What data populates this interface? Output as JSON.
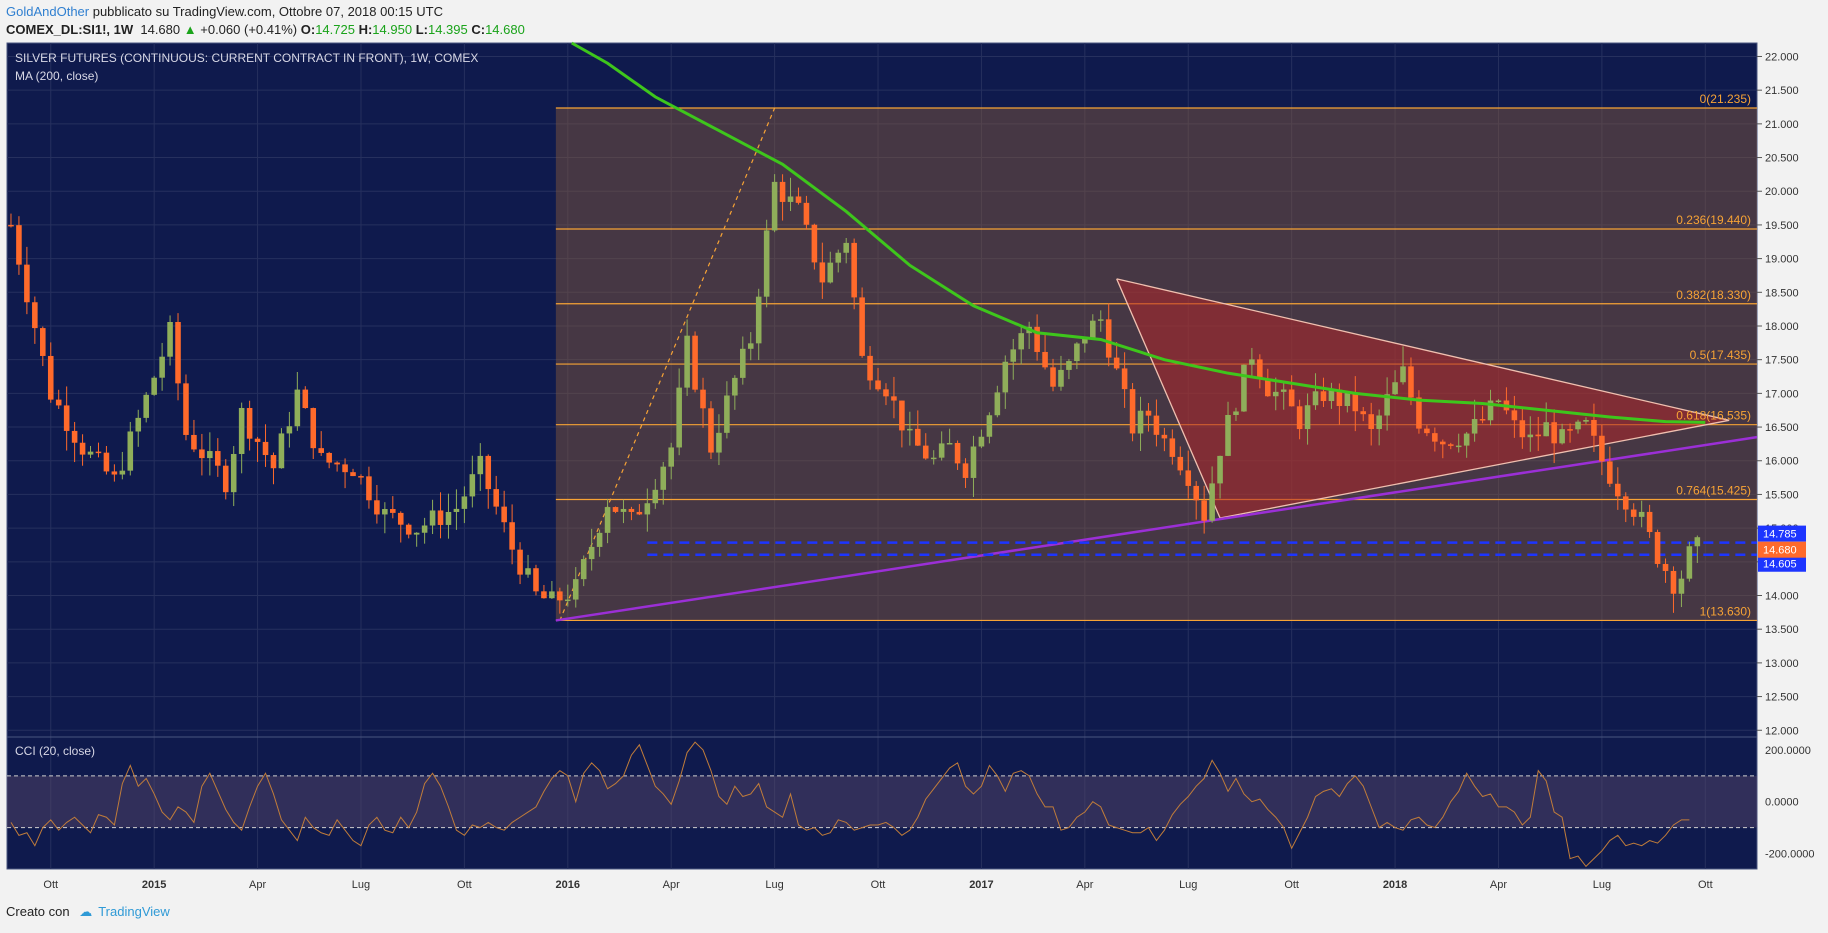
{
  "header": {
    "author": "GoldAndOther",
    "published": " pubblicato su TradingView.com, Ottobre 07, 2018 00:15 UTC",
    "symbol": "COMEX_DL:SI1!, 1W",
    "last": "14.680",
    "change": "+0.060 (+0.41%)",
    "o_label": "O:",
    "o": "14.725",
    "h_label": "H:",
    "h": "14.950",
    "l_label": "L:",
    "l": "14.395",
    "c_label": "C:",
    "c": "14.680"
  },
  "legend": {
    "title": "SILVER FUTURES (CONTINUOUS: CURRENT CONTRACT IN FRONT), 1W, COMEX",
    "ma": "MA (200, close)",
    "cci": "CCI (20, close)"
  },
  "footer": {
    "made_with": "Creato con",
    "brand": "TradingView"
  },
  "colors": {
    "background": "#0f1a4d",
    "candle_up": "#8fae5a",
    "candle_down": "#ff6a2b",
    "ma": "#3ec61c",
    "trendline": "#9b2fd6",
    "fib": "#f7a335",
    "triangle": "#b0262a",
    "cci": "#c07c3a",
    "hline": "#1d35ff"
  },
  "chart_data": [
    {
      "type": "candlestick",
      "title": "SILVER FUTURES (CONTINUOUS: CURRENT CONTRACT IN FRONT), 1W, COMEX",
      "ylim": [
        11.9,
        22.2
      ],
      "y_ticks": [
        "22.000",
        "21.500",
        "21.000",
        "20.500",
        "20.000",
        "19.500",
        "19.000",
        "18.500",
        "18.000",
        "17.500",
        "17.000",
        "16.500",
        "16.000",
        "15.500",
        "15.000",
        "14.500",
        "14.000",
        "13.500",
        "13.000",
        "12.500",
        "12.000"
      ],
      "x_ticks": [
        {
          "label": "Ott",
          "week": 0
        },
        {
          "label": "2015",
          "week": 13,
          "bold": true
        },
        {
          "label": "Apr",
          "week": 26
        },
        {
          "label": "Lug",
          "week": 39
        },
        {
          "label": "Ott",
          "week": 52
        },
        {
          "label": "2016",
          "week": 65,
          "bold": true
        },
        {
          "label": "Apr",
          "week": 78
        },
        {
          "label": "Lug",
          "week": 91
        },
        {
          "label": "Ott",
          "week": 104
        },
        {
          "label": "2017",
          "week": 117,
          "bold": true
        },
        {
          "label": "Apr",
          "week": 130
        },
        {
          "label": "Lug",
          "week": 143
        },
        {
          "label": "Ott",
          "week": 156
        },
        {
          "label": "2018",
          "week": 169,
          "bold": true
        },
        {
          "label": "Apr",
          "week": 182
        },
        {
          "label": "Lug",
          "week": 195
        },
        {
          "label": "Ott",
          "week": 208
        }
      ],
      "x_range": [
        -5.5,
        214.5
      ],
      "keypoints": [
        [
          -5,
          19.5
        ],
        [
          0,
          17.0
        ],
        [
          4,
          16.2
        ],
        [
          8,
          15.7
        ],
        [
          11,
          16.6
        ],
        [
          15,
          17.9
        ],
        [
          17,
          16.4
        ],
        [
          22,
          15.7
        ],
        [
          24,
          16.7
        ],
        [
          28,
          15.9
        ],
        [
          31,
          17.0
        ],
        [
          34,
          16.0
        ],
        [
          38,
          15.9
        ],
        [
          42,
          15.2
        ],
        [
          46,
          15.0
        ],
        [
          51,
          15.3
        ],
        [
          54,
          15.9
        ],
        [
          58,
          14.7
        ],
        [
          61,
          14.0
        ],
        [
          63,
          13.9
        ],
        [
          66,
          14.1
        ],
        [
          70,
          15.4
        ],
        [
          73,
          15.1
        ],
        [
          75,
          15.5
        ],
        [
          78,
          16.2
        ],
        [
          80,
          17.7
        ],
        [
          83,
          16.2
        ],
        [
          86,
          17.2
        ],
        [
          88,
          17.8
        ],
        [
          91,
          20.1
        ],
        [
          94,
          19.7
        ],
        [
          97,
          18.7
        ],
        [
          100,
          19.3
        ],
        [
          102,
          17.5
        ],
        [
          105,
          17.1
        ],
        [
          108,
          16.3
        ],
        [
          111,
          16.0
        ],
        [
          113,
          16.2
        ],
        [
          115,
          15.9
        ],
        [
          118,
          16.8
        ],
        [
          120,
          17.5
        ],
        [
          123,
          18.0
        ],
        [
          126,
          17.1
        ],
        [
          128,
          17.4
        ],
        [
          130,
          17.9
        ],
        [
          132,
          18.1
        ],
        [
          134,
          17.3
        ],
        [
          136,
          16.5
        ],
        [
          138,
          16.7
        ],
        [
          140,
          16.3
        ],
        [
          141,
          16.2
        ],
        [
          143,
          15.8
        ],
        [
          145,
          15.2
        ],
        [
          147,
          16.2
        ],
        [
          149,
          16.9
        ],
        [
          151,
          17.6
        ],
        [
          153,
          17.1
        ],
        [
          155,
          16.9
        ],
        [
          157,
          16.6
        ],
        [
          160,
          17.0
        ],
        [
          162,
          16.9
        ],
        [
          164,
          16.8
        ],
        [
          166,
          16.4
        ],
        [
          168,
          16.9
        ],
        [
          170,
          17.3
        ],
        [
          172,
          16.6
        ],
        [
          175,
          16.3
        ],
        [
          178,
          16.4
        ],
        [
          180,
          16.6
        ],
        [
          182,
          16.9
        ],
        [
          184,
          16.5
        ],
        [
          186,
          16.3
        ],
        [
          188,
          16.5
        ],
        [
          190,
          16.3
        ],
        [
          193,
          16.5
        ],
        [
          195,
          16.0
        ],
        [
          197,
          15.6
        ],
        [
          199,
          15.3
        ],
        [
          200,
          15.1
        ],
        [
          202,
          14.6
        ],
        [
          204,
          14.2
        ],
        [
          205,
          14.3
        ],
        [
          206,
          14.6
        ],
        [
          207,
          14.7
        ]
      ],
      "moving_average": {
        "name": "MA (200, close)",
        "points": [
          [
            65.5,
            22.3
          ],
          [
            70,
            21.9
          ],
          [
            76,
            21.4
          ],
          [
            84,
            20.9
          ],
          [
            92,
            20.4
          ],
          [
            100,
            19.7
          ],
          [
            108,
            18.9
          ],
          [
            116,
            18.3
          ],
          [
            124,
            17.9
          ],
          [
            132,
            17.8
          ],
          [
            140,
            17.5
          ],
          [
            148,
            17.3
          ],
          [
            156,
            17.15
          ],
          [
            164,
            17.0
          ],
          [
            172,
            16.9
          ],
          [
            180,
            16.85
          ],
          [
            188,
            16.75
          ],
          [
            196,
            16.65
          ],
          [
            203,
            16.58
          ],
          [
            208,
            16.57
          ]
        ]
      },
      "fibonacci": [
        {
          "label": "0(21.235)",
          "value": 21.235
        },
        {
          "label": "0.236(19.440)",
          "value": 19.44
        },
        {
          "label": "0.382(18.330)",
          "value": 18.33
        },
        {
          "label": "0.5(17.435)",
          "value": 17.435
        },
        {
          "label": "0.618(16.535)",
          "value": 16.535
        },
        {
          "label": "0.764(15.425)",
          "value": 15.425
        },
        {
          "label": "1(13.630)",
          "value": 13.63
        }
      ],
      "fib_range": {
        "from_week": 63.5,
        "to_week": 214.5
      },
      "fib_trend": [
        [
          64,
          13.63
        ],
        [
          91,
          21.235
        ]
      ],
      "trendline": [
        [
          63.5,
          13.63
        ],
        [
          214.5,
          16.35
        ]
      ],
      "triangle": [
        [
          134,
          18.7
        ],
        [
          147,
          15.15
        ],
        [
          211,
          16.6
        ]
      ],
      "triangle_edges": [
        [
          [
            134,
            18.7
          ],
          [
            211,
            16.6
          ]
        ],
        [
          [
            147,
            15.15
          ],
          [
            211,
            16.6
          ]
        ]
      ],
      "horizontal_levels": [
        {
          "label": "14.785",
          "value": 14.785,
          "from_week": 75
        },
        {
          "label": "14.605",
          "value": 14.605,
          "from_week": 75
        }
      ],
      "last_price": {
        "label": "14.680",
        "value": 14.68
      }
    },
    {
      "type": "line",
      "title": "CCI (20, close)",
      "ylim": [
        -260,
        250
      ],
      "y_ticks": [
        "200.0000",
        "0.0000",
        "-200.0000"
      ],
      "bands": [
        100,
        -100
      ],
      "values": [
        -80,
        -130,
        -120,
        -170,
        -100,
        -70,
        -110,
        -80,
        -60,
        -90,
        -120,
        -50,
        -60,
        -90,
        70,
        140,
        60,
        90,
        30,
        -40,
        -70,
        -20,
        -40,
        -80,
        60,
        110,
        40,
        -30,
        -80,
        -110,
        -20,
        60,
        110,
        30,
        -70,
        -110,
        -150,
        -60,
        -100,
        -120,
        -130,
        -70,
        -110,
        -150,
        -170,
        -90,
        -60,
        -110,
        -120,
        -60,
        -100,
        -40,
        70,
        110,
        60,
        -20,
        -110,
        -130,
        -90,
        -100,
        -80,
        -100,
        -110,
        -80,
        -60,
        -40,
        -20,
        40,
        90,
        120,
        100,
        0,
        110,
        150,
        120,
        50,
        70,
        100,
        180,
        220,
        140,
        60,
        30,
        -10,
        80,
        190,
        230,
        200,
        120,
        20,
        -10,
        60,
        20,
        30,
        70,
        -20,
        -40,
        -60,
        30,
        -90,
        -110,
        -100,
        -130,
        -120,
        -70,
        -80,
        -110,
        -100,
        -90,
        -90,
        -80,
        -100,
        -130,
        -110,
        -60,
        10,
        50,
        90,
        130,
        150,
        60,
        30,
        60,
        140,
        100,
        40,
        110,
        120,
        100,
        30,
        -20,
        -20,
        -110,
        -100,
        -60,
        -40,
        0,
        -20,
        -90,
        -100,
        -110,
        -120,
        -120,
        -100,
        -150,
        -110,
        -50,
        -10,
        20,
        60,
        90,
        160,
        110,
        40,
        90,
        30,
        0,
        10,
        -30,
        -60,
        -100,
        -180,
        -120,
        -60,
        20,
        40,
        50,
        20,
        70,
        100,
        60,
        -20,
        -100,
        -80,
        -100,
        -110,
        -70,
        -60,
        -90,
        -100,
        -60,
        0,
        40,
        110,
        60,
        20,
        30,
        -20,
        -20,
        -40,
        -90,
        -60,
        120,
        80,
        -40,
        -60,
        -220,
        -210,
        -250,
        -220,
        -190,
        -150,
        -130,
        -170,
        -160,
        -170,
        -150,
        -160,
        -130,
        -90,
        -70,
        -70
      ],
      "x_start_week": -5
    }
  ]
}
